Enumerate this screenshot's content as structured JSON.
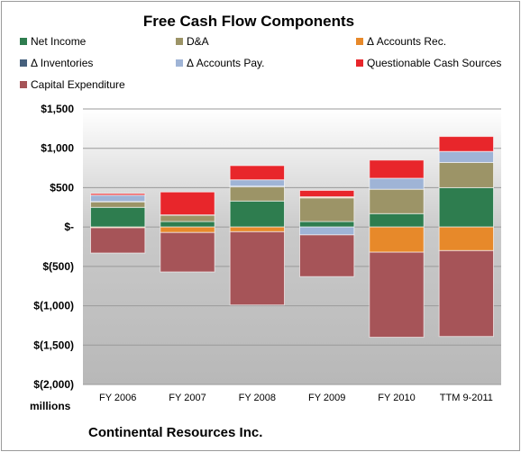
{
  "chart_data": {
    "type": "bar",
    "stacked": true,
    "title": "Free Cash Flow Components",
    "units_label": "millions",
    "company": "Continental Resources Inc.",
    "categories": [
      "FY 2006",
      "FY 2007",
      "FY 2008",
      "FY 2009",
      "FY 2010",
      "TTM 9-2011"
    ],
    "ylim": [
      -2000,
      1500
    ],
    "yticks": [
      1500,
      1000,
      500,
      0,
      -500,
      -1000,
      -1500,
      -2000
    ],
    "ytick_labels": [
      "$1,500",
      "$1,000",
      "$500",
      "$-",
      "$(500)",
      "$(1,000)",
      "$(1,500)",
      "$(2,000)"
    ],
    "legend_position": "top",
    "series": [
      {
        "name": "Net Income",
        "color": "#2e7d4f",
        "values": [
          250,
          70,
          330,
          70,
          170,
          500
        ]
      },
      {
        "name": "D&A",
        "color": "#9c9467",
        "values": [
          70,
          80,
          180,
          300,
          310,
          320
        ]
      },
      {
        "name": "Δ Accounts Rec.",
        "color": "#e7892a",
        "values": [
          -10,
          -70,
          -60,
          10,
          -320,
          -300
        ]
      },
      {
        "name": "Δ Inventories",
        "color": "#46607d",
        "values": [
          5,
          5,
          10,
          5,
          0,
          0
        ]
      },
      {
        "name": "Δ Accounts Pay.",
        "color": "#9fb4d6",
        "values": [
          80,
          0,
          80,
          -100,
          140,
          140
        ]
      },
      {
        "name": "Questionable Cash Sources",
        "color": "#e8262b",
        "values": [
          20,
          290,
          180,
          80,
          230,
          190
        ]
      },
      {
        "name": "Capital Expenditure",
        "color": "#a65458",
        "values": [
          -320,
          -500,
          -930,
          -530,
          -1080,
          -1090
        ]
      }
    ]
  }
}
